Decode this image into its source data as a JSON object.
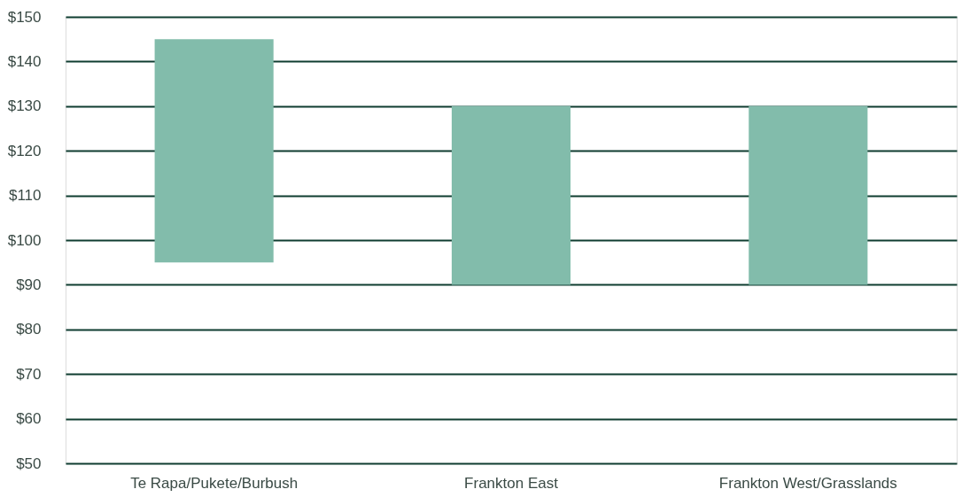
{
  "chart_data": {
    "type": "bar",
    "categories": [
      "Te Rapa/Pukete/Burbush",
      "Frankton East",
      "Frankton West/Grasslands"
    ],
    "base": [
      95,
      90,
      90
    ],
    "values": [
      50,
      40,
      40
    ],
    "color": "#82bcab",
    "ylim": [
      50,
      150
    ],
    "yticks": [
      {
        "value": 50,
        "label": "$50"
      },
      {
        "value": 60,
        "label": "$60"
      },
      {
        "value": 70,
        "label": "$70"
      },
      {
        "value": 80,
        "label": "$80"
      },
      {
        "value": 90,
        "label": "$90"
      },
      {
        "value": 100,
        "label": "$100"
      },
      {
        "value": 110,
        "label": "$110"
      },
      {
        "value": 120,
        "label": "$120"
      },
      {
        "value": 130,
        "label": "$130"
      },
      {
        "value": 140,
        "label": "$140"
      },
      {
        "value": 150,
        "label": "$150"
      }
    ],
    "grid": "y"
  }
}
